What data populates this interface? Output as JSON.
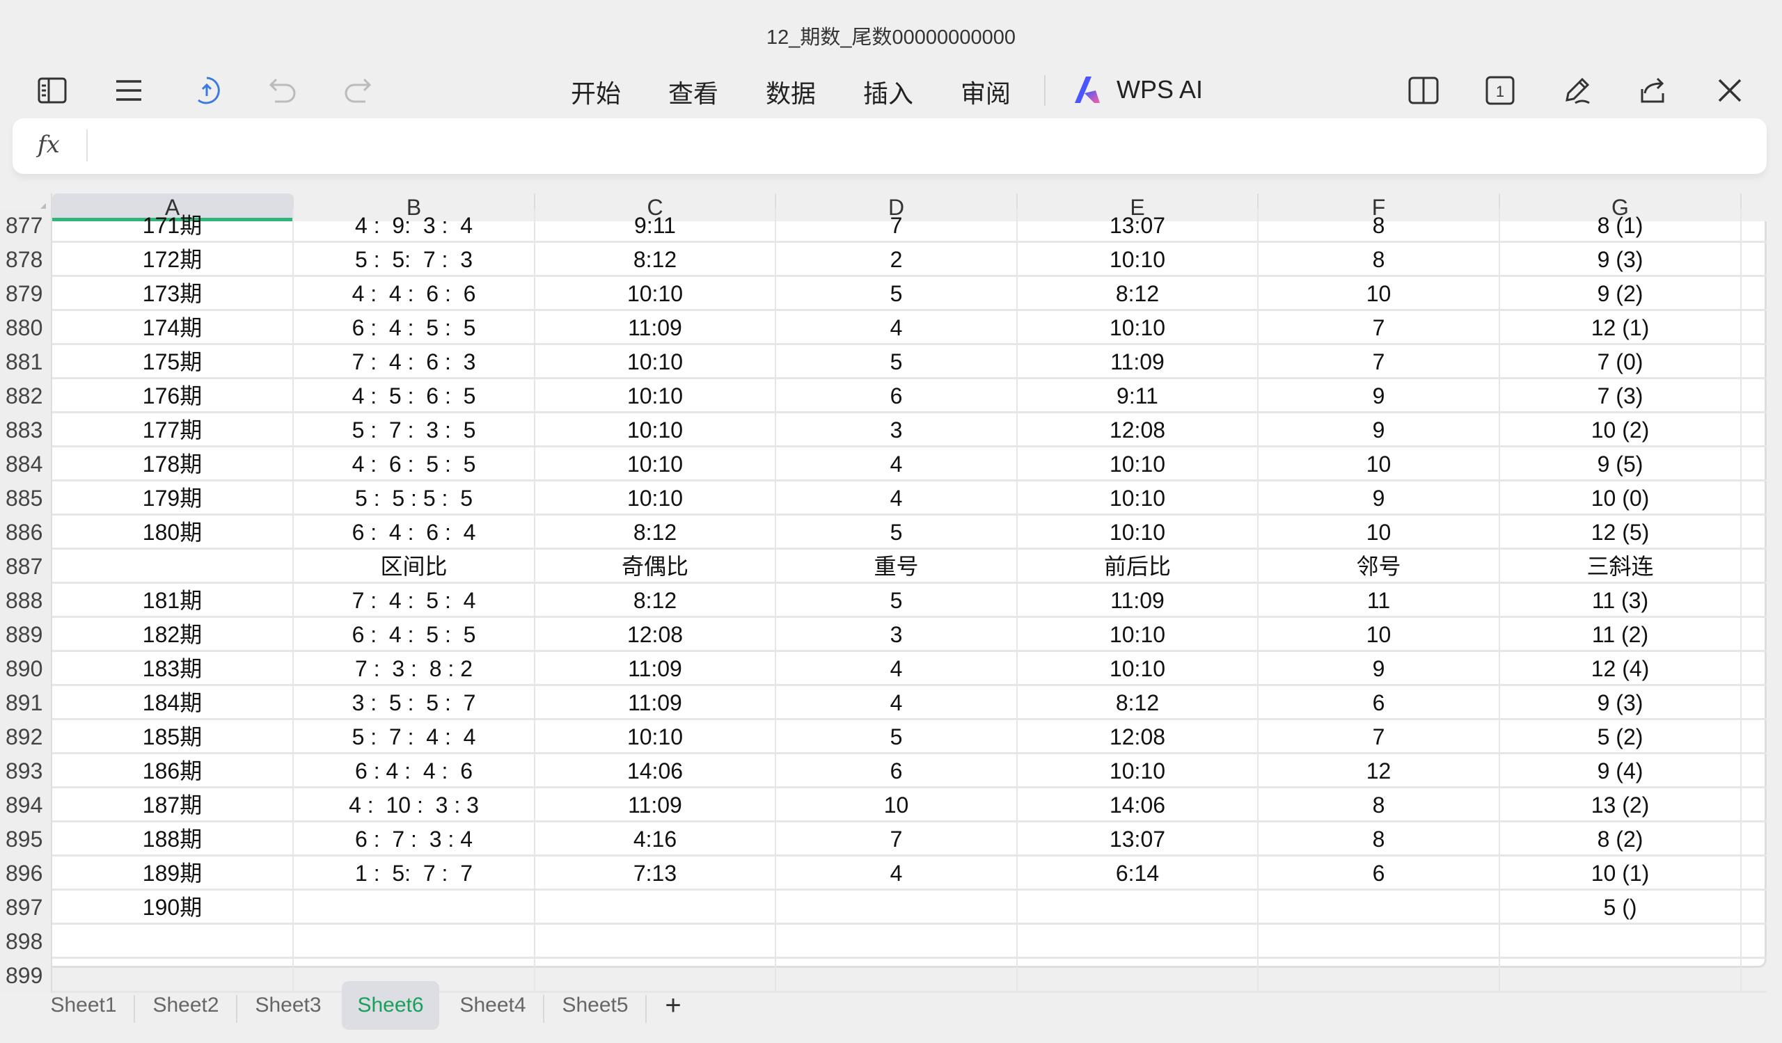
{
  "title": "12_期数_尾数00000000000",
  "toolbar": {
    "menus": [
      "开始",
      "查看",
      "数据",
      "插入",
      "审阅"
    ],
    "ai_label": "WPS AI",
    "accent": "#2fb57a"
  },
  "formula_bar": {
    "fx": "fx",
    "value": ""
  },
  "columns": [
    "A",
    "B",
    "C",
    "D",
    "E",
    "F",
    "G"
  ],
  "rows": [
    {
      "n": "877",
      "c": [
        "171期",
        "4 :  9:  3 :  4",
        "9:11",
        "7",
        "13:07",
        "8",
        "8 (1)"
      ]
    },
    {
      "n": "878",
      "c": [
        "172期",
        "5 :  5:  7 :  3",
        "8:12",
        "2",
        "10:10",
        "8",
        "9 (3)"
      ]
    },
    {
      "n": "879",
      "c": [
        "173期",
        "4 :  4 :  6 :  6",
        "10:10",
        "5",
        "8:12",
        "10",
        "9 (2)"
      ]
    },
    {
      "n": "880",
      "c": [
        "174期",
        "6 :  4 :  5 :  5",
        "11:09",
        "4",
        "10:10",
        "7",
        "12 (1)"
      ]
    },
    {
      "n": "881",
      "c": [
        "175期",
        "7 :  4 :  6 :  3",
        "10:10",
        "5",
        "11:09",
        "7",
        "7 (0)"
      ]
    },
    {
      "n": "882",
      "c": [
        "176期",
        "4 :  5 :  6 :  5",
        "10:10",
        "6",
        "9:11",
        "9",
        "7 (3)"
      ]
    },
    {
      "n": "883",
      "c": [
        "177期",
        "5 :  7 :  3 :  5",
        "10:10",
        "3",
        "12:08",
        "9",
        "10 (2)"
      ]
    },
    {
      "n": "884",
      "c": [
        "178期",
        "4 :  6 :  5 :  5",
        "10:10",
        "4",
        "10:10",
        "10",
        "9 (5)"
      ]
    },
    {
      "n": "885",
      "c": [
        "179期",
        "5 :  5 : 5 :  5",
        "10:10",
        "4",
        "10:10",
        "9",
        "10 (0)"
      ]
    },
    {
      "n": "886",
      "c": [
        "180期",
        "6 :  4 :  6 :  4",
        "8:12",
        "5",
        "10:10",
        "10",
        "12 (5)"
      ]
    },
    {
      "n": "887",
      "c": [
        "",
        "区间比",
        "奇偶比",
        "重号",
        "前后比",
        "邻号",
        "三斜连"
      ]
    },
    {
      "n": "888",
      "c": [
        "181期",
        "7 :  4 :  5 :  4",
        "8:12",
        "5",
        "11:09",
        "11",
        "11 (3)"
      ]
    },
    {
      "n": "889",
      "c": [
        "182期",
        "6 :  4 :  5 :  5",
        "12:08",
        "3",
        "10:10",
        "10",
        "11 (2)"
      ]
    },
    {
      "n": "890",
      "c": [
        "183期",
        "7 :  3 :  8 : 2",
        "11:09",
        "4",
        "10:10",
        "9",
        "12 (4)"
      ]
    },
    {
      "n": "891",
      "c": [
        "184期",
        "3 :  5 :  5 :  7",
        "11:09",
        "4",
        "8:12",
        "6",
        "9 (3)"
      ]
    },
    {
      "n": "892",
      "c": [
        "185期",
        "5 :  7 :  4 :  4",
        "10:10",
        "5",
        "12:08",
        "7",
        "5 (2)"
      ]
    },
    {
      "n": "893",
      "c": [
        "186期",
        "6 : 4 :  4 :  6",
        "14:06",
        "6",
        "10:10",
        "12",
        "9 (4)"
      ]
    },
    {
      "n": "894",
      "c": [
        "187期",
        "4 :  10 :  3 : 3",
        "11:09",
        "10",
        "14:06",
        "8",
        "13 (2)"
      ]
    },
    {
      "n": "895",
      "c": [
        "188期",
        "6 :  7 :  3 : 4",
        "4:16",
        "7",
        "13:07",
        "8",
        "8 (2)"
      ]
    },
    {
      "n": "896",
      "c": [
        "189期",
        "1 :  5:  7 :  7",
        "7:13",
        "4",
        "6:14",
        "6",
        "10 (1)"
      ]
    },
    {
      "n": "897",
      "c": [
        "190期",
        "",
        "",
        "",
        "",
        "",
        "5 ()"
      ]
    },
    {
      "n": "898",
      "c": [
        "",
        "",
        "",
        "",
        "",
        "",
        ""
      ]
    },
    {
      "n": "899",
      "c": [
        "",
        "",
        "",
        "",
        "",
        "",
        ""
      ]
    }
  ],
  "sheets": [
    "Sheet1",
    "Sheet2",
    "Sheet3",
    "Sheet6",
    "Sheet4",
    "Sheet5"
  ],
  "active_sheet": "Sheet6",
  "add_sheet": "+"
}
